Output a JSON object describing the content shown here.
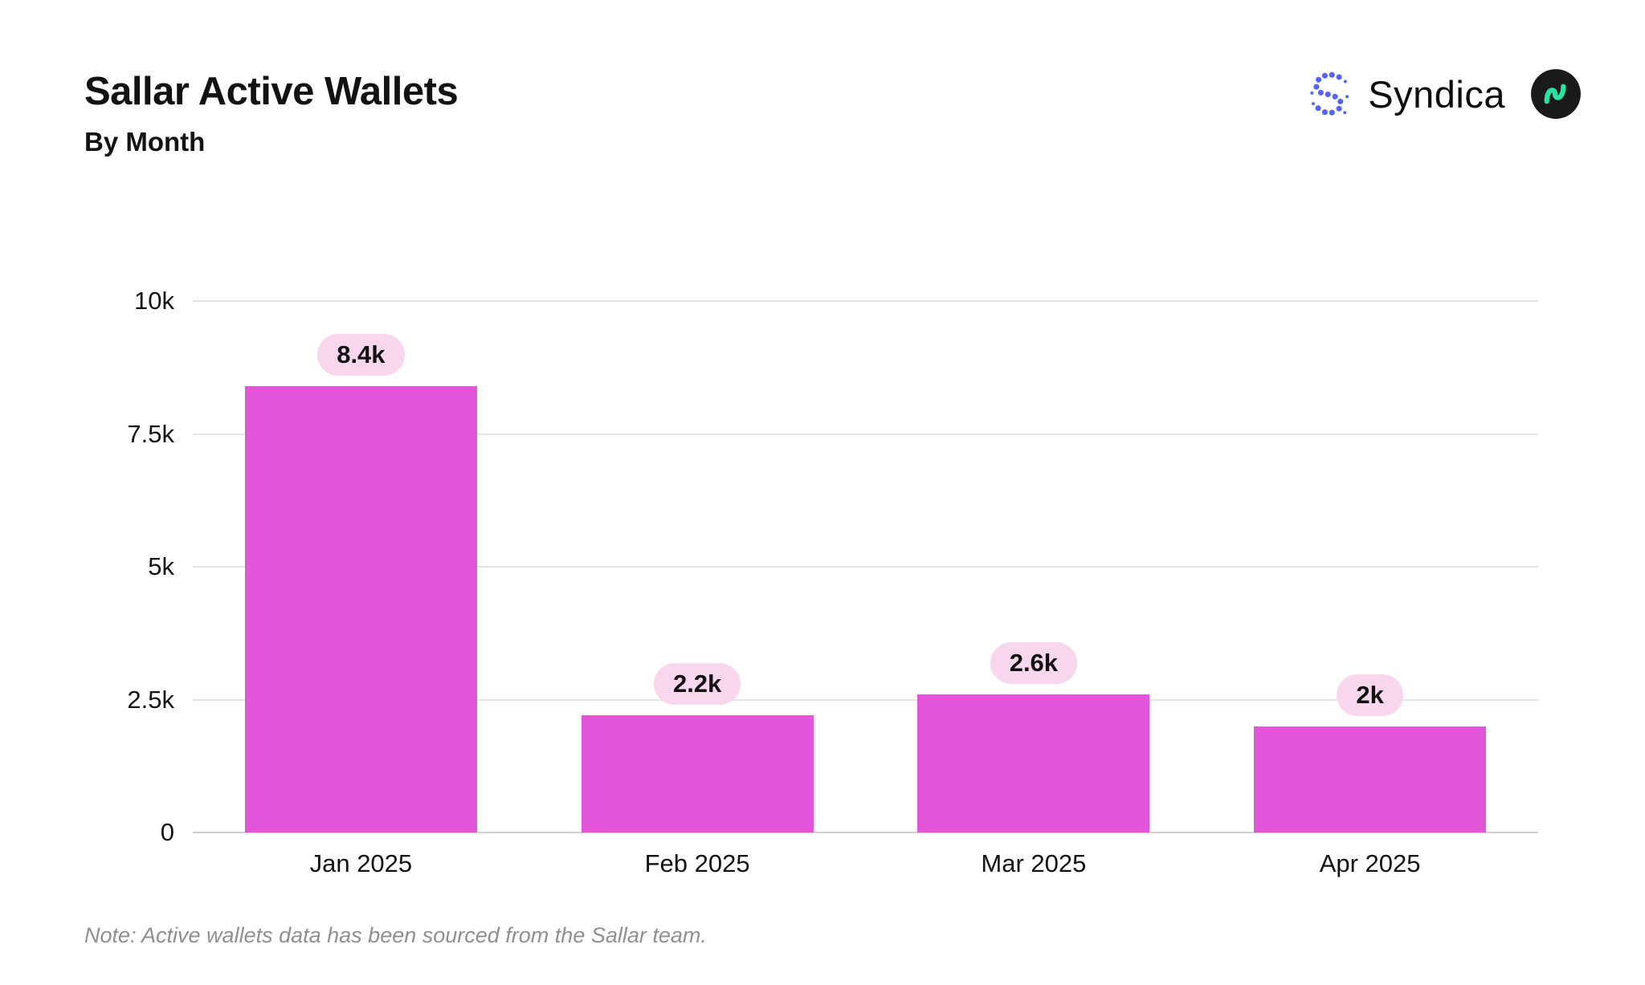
{
  "header": {
    "title": "Sallar Active Wallets",
    "subtitle": "By Month",
    "brand": "Syndica"
  },
  "chart_data": {
    "type": "bar",
    "title": "Sallar Active Wallets",
    "subtitle": "By Month",
    "categories": [
      "Jan 2025",
      "Feb 2025",
      "Mar 2025",
      "Apr 2025"
    ],
    "values": [
      8400,
      2200,
      2600,
      2000
    ],
    "value_labels": [
      "8.4k",
      "2.2k",
      "2.6k",
      "2k"
    ],
    "xlabel": "",
    "ylabel": "",
    "ylim": [
      0,
      10000
    ],
    "yticks": [
      0,
      2500,
      5000,
      7500,
      10000
    ],
    "ytick_labels": [
      "0",
      "2.5k",
      "5k",
      "7.5k",
      "10k"
    ],
    "grid": "horizontal",
    "legend": "none",
    "bar_color": "#E355D8",
    "label_pill_bg": "#F8D7EE",
    "label_text_color": "#121212"
  },
  "footer": {
    "note": "Note: Active wallets data has been sourced from the Sallar team."
  }
}
